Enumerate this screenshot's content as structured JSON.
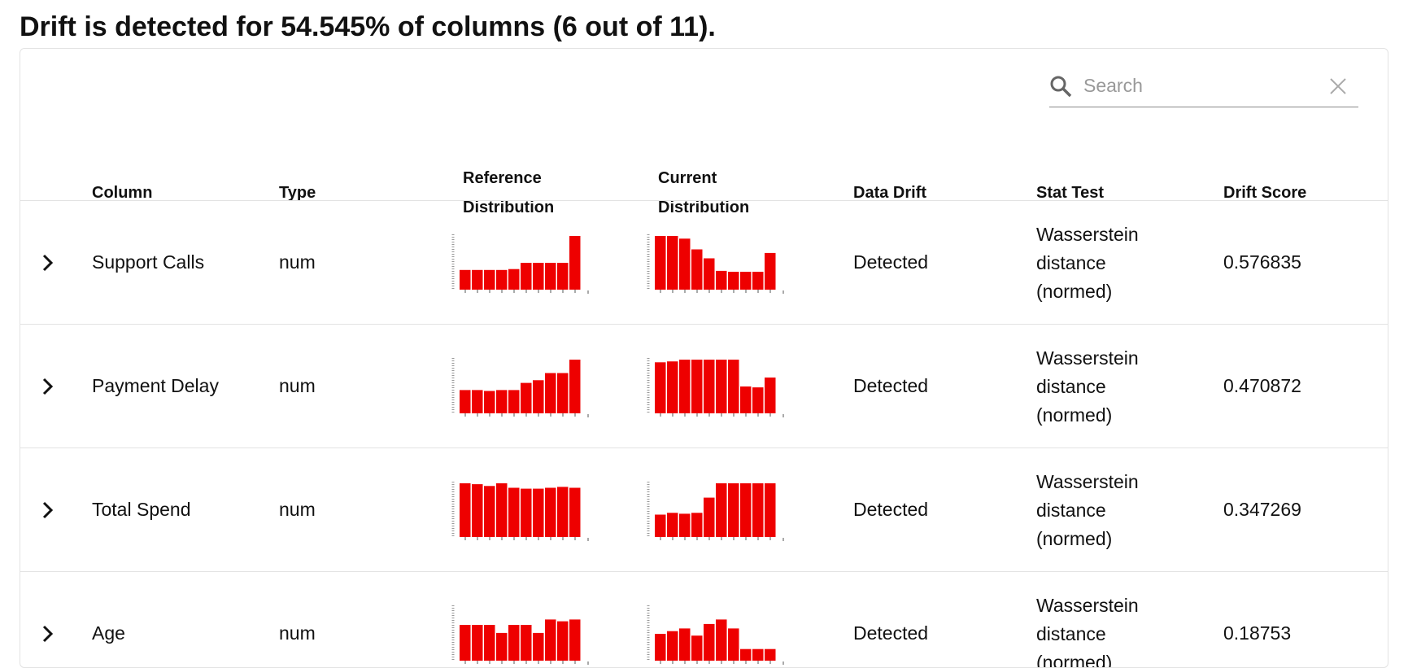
{
  "title": "Drift is detected for 54.545% of columns (6 out of 11).",
  "search_placeholder": "Search",
  "headers": [
    "Column",
    "Type",
    "Reference Distribution",
    "Current Distribution",
    "Data Drift",
    "Stat Test",
    "Drift Score"
  ],
  "bar_color": "#ee0000",
  "rows": [
    {
      "column": "Support Calls",
      "type": "num",
      "reference": [
        22,
        22,
        22,
        22,
        23,
        30,
        30,
        30,
        30,
        60
      ],
      "current": [
        60,
        60,
        57,
        45,
        35,
        21,
        20,
        20,
        20,
        41
      ],
      "data_drift": "Detected",
      "stat_test": "Wasserstein distance (normed)",
      "drift_score": "0.576835"
    },
    {
      "column": "Payment Delay",
      "type": "num",
      "reference": [
        26,
        26,
        25,
        26,
        26,
        34,
        37,
        45,
        45,
        60
      ],
      "current": [
        57,
        58,
        60,
        60,
        60,
        60,
        60,
        30,
        29,
        40
      ],
      "data_drift": "Detected",
      "stat_test": "Wasserstein distance (normed)",
      "drift_score": "0.470872"
    },
    {
      "column": "Total Spend",
      "type": "num",
      "reference": [
        60,
        59,
        57,
        60,
        55,
        54,
        54,
        55,
        56,
        55
      ],
      "current": [
        25,
        27,
        26,
        27,
        44,
        60,
        60,
        60,
        60,
        60
      ],
      "data_drift": "Detected",
      "stat_test": "Wasserstein distance (normed)",
      "drift_score": "0.347269"
    },
    {
      "column": "Age",
      "type": "num",
      "reference": [
        40,
        40,
        40,
        31,
        40,
        40,
        31,
        46,
        44,
        46
      ],
      "current": [
        30,
        33,
        36,
        28,
        41,
        46,
        36,
        13,
        13,
        13
      ],
      "data_drift": "Detected",
      "stat_test": "Wasserstein distance (normed)",
      "drift_score": "0.18753"
    }
  ]
}
